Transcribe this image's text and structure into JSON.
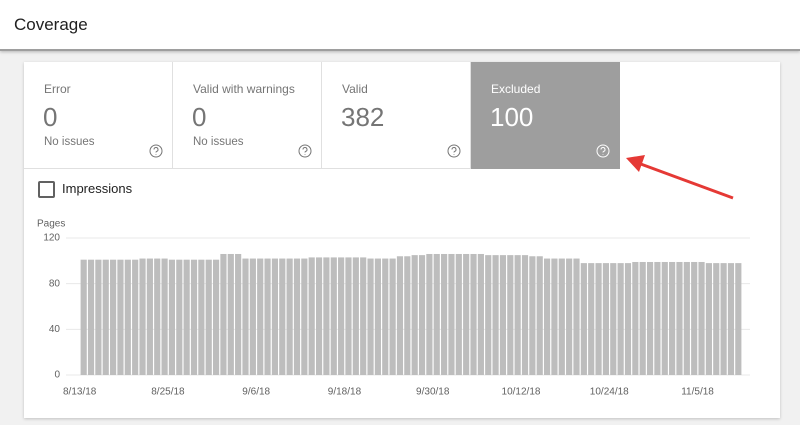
{
  "header": {
    "title": "Coverage"
  },
  "cards": [
    {
      "label": "Error",
      "value": 0,
      "note": "No issues"
    },
    {
      "label": "Valid with warnings",
      "value": 0,
      "note": "No issues"
    },
    {
      "label": "Valid",
      "value": 382
    },
    {
      "label": "Excluded",
      "value": 100
    }
  ],
  "toggle": {
    "label": "Impressions"
  },
  "chart_data": {
    "type": "bar",
    "y_label": "Pages",
    "color": "#bdbdbd",
    "grid": true,
    "ylim": [
      0,
      120
    ],
    "yticks": [
      0,
      40,
      80,
      120
    ],
    "categories": [
      "8/13/18",
      null,
      null,
      null,
      null,
      null,
      null,
      null,
      null,
      null,
      null,
      null,
      "8/25/18",
      null,
      null,
      null,
      null,
      null,
      null,
      null,
      null,
      null,
      null,
      null,
      "9/6/18",
      null,
      null,
      null,
      null,
      null,
      null,
      null,
      null,
      null,
      null,
      null,
      "9/18/18",
      null,
      null,
      null,
      null,
      null,
      null,
      null,
      null,
      null,
      null,
      null,
      "9/30/18",
      null,
      null,
      null,
      null,
      null,
      null,
      null,
      null,
      null,
      null,
      null,
      "10/12/18",
      null,
      null,
      null,
      null,
      null,
      null,
      null,
      null,
      null,
      null,
      null,
      "10/24/18",
      null,
      null,
      null,
      null,
      null,
      null,
      null,
      null,
      null,
      null,
      null,
      "11/5/18",
      null,
      null,
      null,
      null,
      null
    ],
    "values": [
      101,
      101,
      101,
      101,
      101,
      101,
      101,
      101,
      102,
      102,
      102,
      102,
      101,
      101,
      101,
      101,
      101,
      101,
      101,
      106,
      106,
      106,
      102,
      102,
      102,
      102,
      102,
      102,
      102,
      102,
      102,
      103,
      103,
      103,
      103,
      103,
      103,
      103,
      103,
      102,
      102,
      102,
      102,
      104,
      104,
      105,
      105,
      106,
      106,
      106,
      106,
      106,
      106,
      106,
      106,
      105,
      105,
      105,
      105,
      105,
      105,
      104,
      104,
      102,
      102,
      102,
      102,
      102,
      98,
      98,
      98,
      98,
      98,
      98,
      98,
      99,
      99,
      99,
      99,
      99,
      99,
      99,
      99,
      99,
      99,
      98,
      98,
      98,
      98,
      98
    ]
  }
}
